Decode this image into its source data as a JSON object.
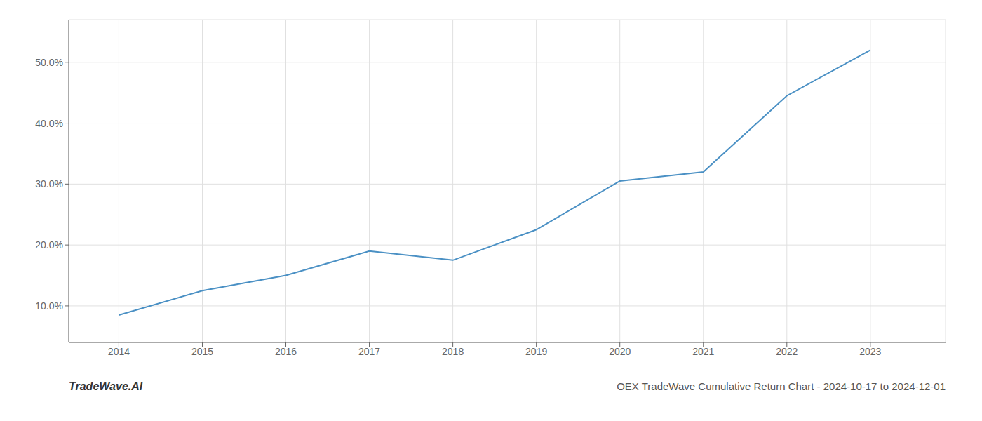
{
  "chart_data": {
    "type": "line",
    "title": "OEX TradeWave Cumulative Return Chart - 2024-10-17 to 2024-12-01",
    "annotations": [
      "TradeWave.AI"
    ],
    "x": [
      2014,
      2015,
      2016,
      2017,
      2018,
      2019,
      2020,
      2021,
      2022,
      2023
    ],
    "values": [
      0.085,
      0.125,
      0.15,
      0.19,
      0.175,
      0.225,
      0.305,
      0.32,
      0.445,
      0.52
    ],
    "color": "#4a90c4",
    "xlim": [
      2013.4,
      2023.9
    ],
    "xticks": [
      2014,
      2015,
      2016,
      2017,
      2018,
      2019,
      2020,
      2021,
      2022,
      2023
    ],
    "ylim": [
      0.04,
      0.57
    ],
    "yticks": [
      {
        "value": 0.1,
        "label": "10.0%"
      },
      {
        "value": 0.2,
        "label": "20.0%"
      },
      {
        "value": 0.3,
        "label": "30.0%"
      },
      {
        "value": 0.4,
        "label": "40.0%"
      },
      {
        "value": 0.5,
        "label": "50.0%"
      }
    ],
    "grid": true
  }
}
